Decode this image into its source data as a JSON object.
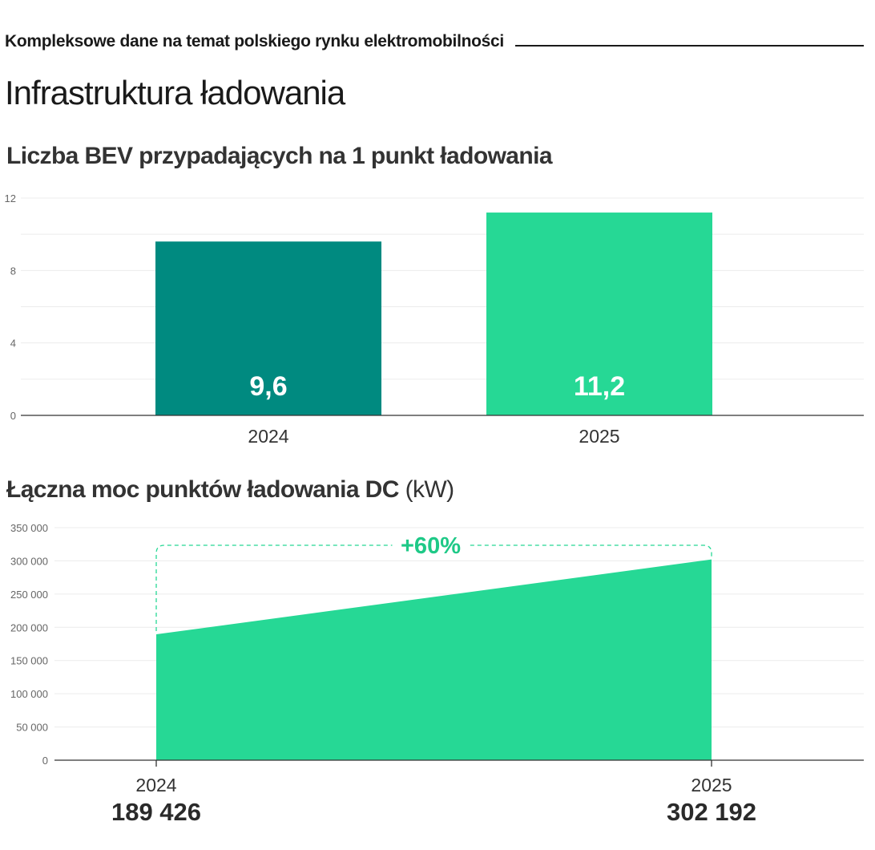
{
  "header": {
    "kicker": "Kompleksowe dane na temat polskiego rynku elektromobilności",
    "page_title": "Infrastruktura ładowania"
  },
  "colors": {
    "dark_teal": "#008a80",
    "mint": "#26d895",
    "growth_label": "#1ec987"
  },
  "chart_data": [
    {
      "type": "bar",
      "title": "Liczba BEV przypadających na 1 punkt ładowania",
      "categories": [
        "2024",
        "2025"
      ],
      "values": [
        9.6,
        11.2
      ],
      "value_labels": [
        "9,6",
        "11,2"
      ],
      "ylim": [
        0,
        12
      ],
      "yticks": [
        0,
        4,
        8,
        12
      ],
      "ytick_labels": [
        "0",
        "4",
        "8",
        "12"
      ],
      "grid": true,
      "bar_colors": [
        "#008a80",
        "#26d895"
      ]
    },
    {
      "type": "area",
      "title": "Łączna moc punktów ładowania DC",
      "unit": "(kW)",
      "x": [
        "2024",
        "2025"
      ],
      "values": [
        189426,
        302192
      ],
      "value_labels": [
        "189 426",
        "302 192"
      ],
      "change_label": "+60%",
      "ylim": [
        0,
        350000
      ],
      "yticks": [
        0,
        50000,
        100000,
        150000,
        200000,
        250000,
        300000,
        350000
      ],
      "ytick_labels": [
        "0",
        "50 000",
        "100 000",
        "150 000",
        "200 000",
        "250 000",
        "300 000",
        "350 000"
      ],
      "grid": true,
      "fill_color": "#26d895"
    }
  ]
}
